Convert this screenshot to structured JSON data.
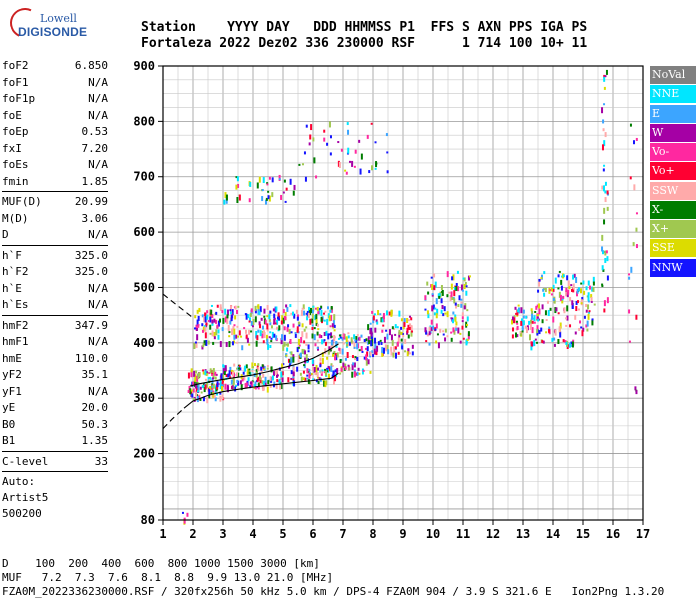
{
  "logo": {
    "line1": "Lowell",
    "line2": "DIGISONDE"
  },
  "header": {
    "labels": [
      "Station",
      "YYYY",
      "DAY",
      "DDD",
      "HHMMSS",
      "P1",
      "FFS",
      "S",
      "AXN",
      "PPS",
      "IGA",
      "PS"
    ],
    "values": [
      "Fortaleza",
      "2022",
      "Dez02",
      "336",
      "230000",
      "RSF",
      "1",
      "714",
      "100",
      "10+",
      "11"
    ]
  },
  "params": {
    "group1": [
      {
        "name": "foF2",
        "value": "6.850"
      },
      {
        "name": "foF1",
        "value": "N/A"
      },
      {
        "name": "foF1p",
        "value": "N/A"
      },
      {
        "name": "foE",
        "value": "N/A"
      },
      {
        "name": "foEp",
        "value": "0.53"
      },
      {
        "name": "fxI",
        "value": "7.20"
      },
      {
        "name": "foEs",
        "value": "N/A"
      },
      {
        "name": "fmin",
        "value": "1.85"
      }
    ],
    "group2": [
      {
        "name": "MUF(D)",
        "value": "20.99"
      },
      {
        "name": "M(D)",
        "value": "3.06"
      },
      {
        "name": "D",
        "value": "N/A"
      }
    ],
    "group3": [
      {
        "name": "h`F",
        "value": "325.0"
      },
      {
        "name": "h`F2",
        "value": "325.0"
      },
      {
        "name": "h`E",
        "value": "N/A"
      },
      {
        "name": "h`Es",
        "value": "N/A"
      }
    ],
    "group4": [
      {
        "name": "hmF2",
        "value": "347.9"
      },
      {
        "name": "hmF1",
        "value": "N/A"
      },
      {
        "name": "hmE",
        "value": "110.0"
      },
      {
        "name": "yF2",
        "value": "35.1"
      },
      {
        "name": "yF1",
        "value": "N/A"
      },
      {
        "name": "yE",
        "value": "20.0"
      },
      {
        "name": "B0",
        "value": "50.3"
      },
      {
        "name": "B1",
        "value": "1.35"
      }
    ],
    "group5": [
      {
        "name": "C-level",
        "value": "33"
      }
    ],
    "auto": [
      "Auto:",
      "Artist5",
      "500200"
    ]
  },
  "footer": {
    "line1": "D    100  200  400  600  800 1000 1500 3000 [km]",
    "line2": "MUF   7.2  7.3  7.6  8.1  8.8  9.9 13.0 21.0 [MHz]",
    "line3": "FZA0M_2022336230000.RSF / 320fx256h 50 kHz 5.0 km / DPS-4 FZA0M 904 / 3.9 S 321.6 E   Ion2Png 1.3.20"
  },
  "legend": [
    {
      "label": "NoVal",
      "color": "#808080"
    },
    {
      "label": "NNE",
      "color": "#00e6ff"
    },
    {
      "label": "E",
      "color": "#3ca5ff"
    },
    {
      "label": "W",
      "color": "#a500a5"
    },
    {
      "label": "Vo-",
      "color": "#ff28a0"
    },
    {
      "label": "Vo+",
      "color": "#ff0032"
    },
    {
      "label": "SSW",
      "color": "#ffaaaa"
    },
    {
      "label": "X-",
      "color": "#007d00"
    },
    {
      "label": "X+",
      "color": "#a0c850"
    },
    {
      "label": "SSE",
      "color": "#dcdc00"
    },
    {
      "label": "NNW",
      "color": "#1414ff"
    }
  ],
  "chart_data": {
    "type": "scatter",
    "xlim": [
      1,
      17
    ],
    "ylim": [
      80,
      900
    ],
    "xticks": [
      1,
      2,
      3,
      4,
      5,
      6,
      7,
      8,
      9,
      10,
      11,
      12,
      13,
      14,
      15,
      16,
      17
    ],
    "yticks": [
      80,
      200,
      300,
      400,
      500,
      600,
      700,
      800,
      900
    ],
    "grid": true,
    "legend_position": "right",
    "profile": {
      "x": [
        1.9,
        2.2,
        2.6,
        3.0,
        3.5,
        4.0,
        4.5,
        5.0,
        5.5,
        6.0,
        6.5,
        6.85
      ],
      "y": [
        322,
        326,
        330,
        334,
        338,
        342,
        348,
        355,
        362,
        372,
        386,
        398
      ]
    },
    "lower_bound": {
      "x": [
        1.0,
        1.3,
        1.7,
        2.0,
        2.5,
        3.0,
        3.5,
        4.0,
        5.0,
        6.0,
        6.6,
        6.85
      ],
      "y": [
        245,
        262,
        282,
        295,
        305,
        312,
        316,
        320,
        326,
        332,
        336,
        345
      ]
    },
    "upper_bound": {
      "x": [
        1.0,
        1.3,
        1.7,
        2.0
      ],
      "y": [
        488,
        475,
        458,
        445
      ]
    },
    "clusters": [
      {
        "xmin": 1.8,
        "xmax": 3.0,
        "ymin": 300,
        "ymax": 355,
        "n": 120
      },
      {
        "xmin": 2.9,
        "xmax": 5.0,
        "ymin": 320,
        "ymax": 365,
        "n": 150
      },
      {
        "xmin": 5.0,
        "xmax": 6.8,
        "ymin": 330,
        "ymax": 395,
        "n": 130
      },
      {
        "xmin": 2.0,
        "xmax": 6.8,
        "ymin": 395,
        "ymax": 470,
        "n": 330
      },
      {
        "xmin": 6.8,
        "xmax": 8.0,
        "ymin": 345,
        "ymax": 420,
        "n": 90
      },
      {
        "xmin": 7.8,
        "xmax": 9.3,
        "ymin": 380,
        "ymax": 460,
        "n": 110
      },
      {
        "xmin": 9.7,
        "xmax": 11.2,
        "ymin": 400,
        "ymax": 530,
        "n": 130
      },
      {
        "xmin": 12.6,
        "xmax": 13.5,
        "ymin": 415,
        "ymax": 470,
        "n": 60
      },
      {
        "xmin": 13.4,
        "xmax": 15.4,
        "ymin": 420,
        "ymax": 530,
        "n": 140
      },
      {
        "xmin": 13.2,
        "xmax": 14.8,
        "ymin": 395,
        "ymax": 410,
        "n": 25
      },
      {
        "xmin": 3.0,
        "xmax": 5.5,
        "ymin": 655,
        "ymax": 705,
        "n": 40
      },
      {
        "xmin": 5.5,
        "xmax": 8.5,
        "ymin": 700,
        "ymax": 800,
        "n": 45
      },
      {
        "xmin": 15.6,
        "xmax": 15.8,
        "ymin": 460,
        "ymax": 900,
        "n": 40
      },
      {
        "xmin": 16.5,
        "xmax": 16.8,
        "ymin": 280,
        "ymax": 840,
        "n": 18
      },
      {
        "xmin": 1.6,
        "xmax": 1.8,
        "ymin": 80,
        "ymax": 95,
        "n": 4
      }
    ]
  }
}
